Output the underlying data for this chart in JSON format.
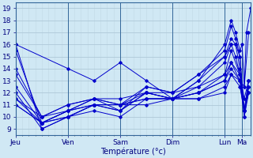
{
  "title": "",
  "xlabel": "Température (°c)",
  "ylabel": "",
  "xlim": [
    0,
    108
  ],
  "ylim": [
    8.5,
    19.5
  ],
  "yticks": [
    9,
    10,
    11,
    12,
    13,
    14,
    15,
    16,
    17,
    18,
    19
  ],
  "xtick_positions": [
    0,
    24,
    48,
    72,
    96,
    104
  ],
  "xtick_labels": [
    "Jeu",
    "Ven",
    "Sam",
    "Dim",
    "Lun",
    "Ma"
  ],
  "line_color": "#0000CC",
  "bg_color": "#d0e8f4",
  "grid_major_color": "#b0c8dc",
  "grid_minor_color": "#c8dcea",
  "lines": [
    [
      0,
      16.0,
      12,
      9.0,
      24,
      10.0,
      36,
      10.5,
      48,
      10.0,
      60,
      11.5,
      72,
      11.5,
      84,
      13.0,
      96,
      16.0,
      99,
      18.0,
      101,
      17.0,
      103,
      15.5,
      104,
      16.0,
      105,
      12.5,
      106,
      17.0,
      108,
      19.0
    ],
    [
      0,
      15.5,
      12,
      9.5,
      24,
      10.0,
      36,
      11.0,
      48,
      10.5,
      60,
      12.5,
      72,
      12.0,
      84,
      13.5,
      96,
      15.5,
      99,
      17.5,
      101,
      16.5,
      103,
      15.0,
      105,
      10.5,
      107,
      12.0
    ],
    [
      0,
      14.0,
      12,
      10.0,
      24,
      10.5,
      36,
      11.5,
      48,
      10.5,
      60,
      12.0,
      72,
      11.5,
      84,
      13.0,
      96,
      15.0,
      99,
      16.5,
      101,
      16.0,
      103,
      15.0,
      105,
      10.0,
      107,
      12.0
    ],
    [
      0,
      13.5,
      12,
      10.0,
      24,
      11.0,
      36,
      11.5,
      48,
      11.0,
      60,
      12.5,
      72,
      12.0,
      84,
      13.5,
      96,
      15.0,
      99,
      16.0,
      101,
      16.0,
      103,
      14.0,
      105,
      10.5,
      107,
      12.5
    ],
    [
      0,
      12.5,
      12,
      9.5,
      24,
      10.0,
      36,
      11.0,
      48,
      10.5,
      60,
      12.0,
      72,
      11.5,
      84,
      12.5,
      96,
      14.5,
      99,
      16.0,
      101,
      15.0,
      103,
      13.5,
      105,
      10.5,
      107,
      13.0
    ],
    [
      0,
      12.0,
      12,
      9.0,
      24,
      10.0,
      36,
      11.0,
      48,
      11.0,
      60,
      12.0,
      72,
      11.5,
      84,
      12.0,
      96,
      13.5,
      99,
      15.5,
      103,
      13.5,
      105,
      10.5,
      107,
      13.0
    ],
    [
      0,
      11.5,
      12,
      9.5,
      24,
      10.5,
      36,
      11.5,
      48,
      11.0,
      60,
      11.5,
      72,
      11.5,
      84,
      12.0,
      96,
      13.0,
      99,
      14.5,
      103,
      13.0,
      105,
      10.0,
      107,
      12.5
    ],
    [
      0,
      11.0,
      12,
      9.5,
      24,
      10.5,
      36,
      11.0,
      48,
      11.0,
      60,
      11.5,
      72,
      11.5,
      84,
      12.0,
      96,
      13.0,
      99,
      14.0,
      103,
      13.0,
      105,
      10.5,
      107,
      12.0
    ],
    [
      0,
      11.5,
      12,
      10.0,
      24,
      11.0,
      36,
      11.5,
      48,
      11.5,
      60,
      12.0,
      72,
      12.0,
      84,
      12.5,
      96,
      13.5,
      99,
      14.5,
      103,
      13.5,
      105,
      11.5,
      107,
      13.0
    ],
    [
      0,
      11.0,
      12,
      9.5,
      24,
      10.5,
      36,
      11.0,
      48,
      11.0,
      60,
      11.0,
      72,
      11.5,
      84,
      11.5,
      96,
      12.5,
      99,
      13.5,
      103,
      12.5,
      105,
      10.5,
      107,
      12.5
    ],
    [
      0,
      16.0,
      24,
      14.0,
      36,
      13.0,
      48,
      14.5,
      60,
      13.0,
      72,
      11.5,
      84,
      11.5,
      96,
      12.0,
      99,
      13.5,
      103,
      13.0,
      105,
      12.5,
      107,
      17.0
    ]
  ]
}
